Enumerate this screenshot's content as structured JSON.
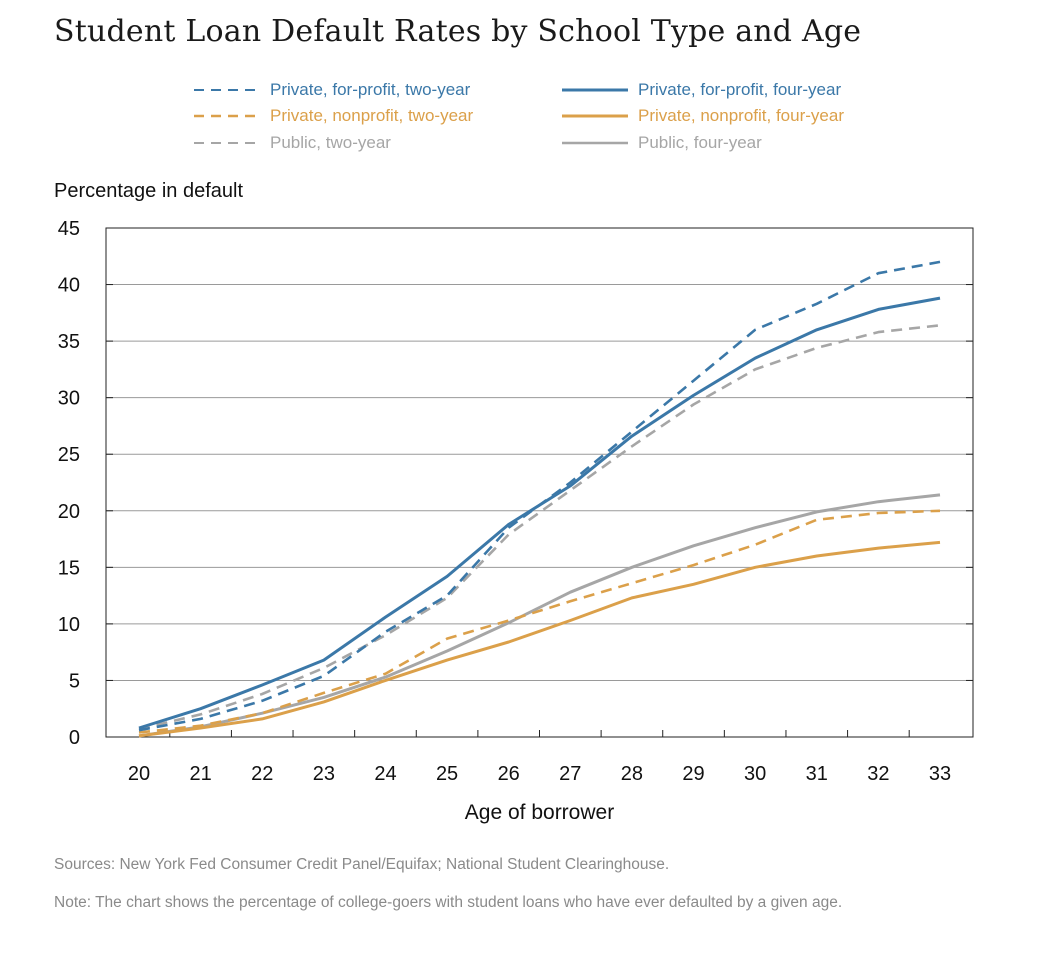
{
  "chart_data": {
    "type": "line",
    "title": "Student Loan Default Rates by School Type and Age",
    "ylabel": "Percentage in default",
    "xlabel": "Age of borrower",
    "x": [
      20,
      21,
      22,
      23,
      24,
      25,
      26,
      27,
      28,
      29,
      30,
      31,
      32,
      33
    ],
    "ylim": [
      0,
      45
    ],
    "yticks": [
      0,
      5,
      10,
      15,
      20,
      25,
      30,
      35,
      40,
      45
    ],
    "grid": true,
    "legend_position": "top",
    "series": [
      {
        "name": "Private, for-profit, two-year",
        "color": "#3b78a8",
        "dash": true,
        "values": [
          0.6,
          1.6,
          3.2,
          5.4,
          9.3,
          12.5,
          18.5,
          22.5,
          27.0,
          31.5,
          36.0,
          38.3,
          41.0,
          42.0
        ]
      },
      {
        "name": "Private, for-profit, four-year",
        "color": "#3b78a8",
        "dash": false,
        "values": [
          0.8,
          2.5,
          4.6,
          6.8,
          10.6,
          14.2,
          18.8,
          22.2,
          26.6,
          30.2,
          33.5,
          36.0,
          37.8,
          38.8
        ]
      },
      {
        "name": "Private, nonprofit, two-year",
        "color": "#dba04a",
        "dash": true,
        "values": [
          0.4,
          1.0,
          2.1,
          3.9,
          5.6,
          8.7,
          10.3,
          12.0,
          13.6,
          15.2,
          17.0,
          19.2,
          19.8,
          20.0
        ]
      },
      {
        "name": "Private, nonprofit, four-year",
        "color": "#dba04a",
        "dash": false,
        "values": [
          0.1,
          0.8,
          1.6,
          3.1,
          5.0,
          6.8,
          8.4,
          10.3,
          12.3,
          13.5,
          15.0,
          16.0,
          16.7,
          17.2
        ]
      },
      {
        "name": "Public, two-year",
        "color": "#a6a6a6",
        "dash": true,
        "values": [
          0.7,
          2.0,
          3.8,
          6.1,
          9.0,
          12.3,
          17.9,
          21.8,
          25.7,
          29.4,
          32.5,
          34.4,
          35.8,
          36.4
        ]
      },
      {
        "name": "Public, four-year",
        "color": "#a6a6a6",
        "dash": false,
        "values": [
          0.1,
          0.9,
          2.1,
          3.5,
          5.3,
          7.6,
          10.1,
          12.8,
          15.0,
          16.9,
          18.5,
          19.9,
          20.8,
          21.4
        ]
      }
    ]
  },
  "sources": "Sources: New York Fed Consumer Credit Panel/Equifax; National Student Clearinghouse.",
  "note": "Note: The chart shows the percentage of college-goers with student loans who have ever defaulted by a given age."
}
